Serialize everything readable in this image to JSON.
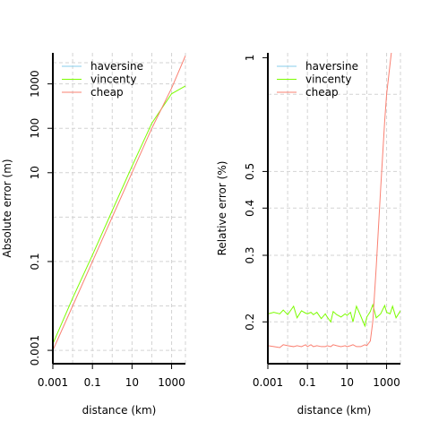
{
  "colors": {
    "haversine": "#87CEEB",
    "vincenty": "#7CFC00",
    "cheap": "#FA8072"
  },
  "chart_data": [
    {
      "type": "line",
      "xlabel": "distance (km)",
      "ylabel": "Absolute error (m)",
      "x_scale": "log",
      "y_scale": "log",
      "xlim": [
        0.001,
        5000
      ],
      "ylim": [
        0.0005,
        5000
      ],
      "x_ticks": [
        {
          "value": 0.001,
          "label": "0.001"
        },
        {
          "value": 0.1,
          "label": "0.1"
        },
        {
          "value": 10,
          "label": "10"
        },
        {
          "value": 1000,
          "label": "1000"
        }
      ],
      "y_ticks": [
        {
          "value": 0.001,
          "label": "0.001"
        },
        {
          "value": 0.1,
          "label": "0.1"
        },
        {
          "value": 10,
          "label": "10"
        },
        {
          "value": 100,
          "label": "100"
        },
        {
          "value": 1000,
          "label": "1000"
        }
      ],
      "x_grid": [
        0.001,
        0.01,
        0.1,
        1,
        10,
        100,
        1000,
        5000
      ],
      "y_grid": [
        0.001,
        0.01,
        0.1,
        1,
        10,
        100,
        1000,
        3000
      ],
      "grid": true,
      "legend": [
        "haversine",
        "vincenty",
        "cheap"
      ],
      "legend_position": "top-left",
      "series": [
        {
          "name": "vincenty",
          "color_key": "vincenty",
          "x": [
            0.001,
            0.01,
            0.1,
            1,
            10,
            100,
            1000,
            5000
          ],
          "y": [
            0.0014,
            0.015,
            0.14,
            1.4,
            14,
            130,
            600,
            900
          ]
        },
        {
          "name": "cheap",
          "color_key": "cheap",
          "x": [
            0.001,
            0.01,
            0.1,
            1,
            10,
            100,
            1000,
            5000
          ],
          "y": [
            0.001,
            0.01,
            0.1,
            1,
            10,
            100,
            800,
            4300
          ]
        }
      ]
    },
    {
      "type": "line",
      "xlabel": "distance (km)",
      "ylabel": "Relative error (%)",
      "x_scale": "log",
      "y_scale": "log",
      "xlim": [
        0.001,
        5000
      ],
      "ylim": [
        0.155,
        1.03
      ],
      "x_ticks": [
        {
          "value": 0.001,
          "label": "0.001"
        },
        {
          "value": 0.1,
          "label": "0.1"
        },
        {
          "value": 10,
          "label": "10"
        },
        {
          "value": 1000,
          "label": "1000"
        }
      ],
      "y_ticks": [
        {
          "value": 0.2,
          "label": "0.2"
        },
        {
          "value": 0.3,
          "label": "0.3"
        },
        {
          "value": 0.4,
          "label": "0.4"
        },
        {
          "value": 0.5,
          "label": "0.5"
        },
        {
          "value": 1,
          "label": "1"
        }
      ],
      "x_grid": [
        0.001,
        0.01,
        0.1,
        1,
        10,
        100,
        1000,
        5000
      ],
      "y_grid": [
        0.2,
        0.3,
        0.4,
        0.5,
        0.8
      ],
      "grid": true,
      "legend": [
        "haversine",
        "vincenty",
        "cheap"
      ],
      "legend_position": "top-right",
      "series": [
        {
          "name": "vincenty",
          "color_key": "vincenty",
          "x": [
            0.001,
            0.002,
            0.004,
            0.006,
            0.01,
            0.02,
            0.03,
            0.05,
            0.08,
            0.1,
            0.15,
            0.2,
            0.3,
            0.5,
            0.8,
            1,
            1.5,
            2,
            3,
            5,
            8,
            10,
            15,
            20,
            30,
            50,
            80,
            100,
            150,
            200,
            300,
            500,
            800,
            1000,
            1500,
            2000,
            3000,
            5000
          ],
          "y": [
            0.21,
            0.212,
            0.21,
            0.215,
            0.209,
            0.22,
            0.205,
            0.214,
            0.211,
            0.21,
            0.212,
            0.209,
            0.212,
            0.204,
            0.21,
            0.206,
            0.2,
            0.213,
            0.209,
            0.206,
            0.21,
            0.208,
            0.212,
            0.2,
            0.22,
            0.207,
            0.195,
            0.206,
            0.213,
            0.222,
            0.205,
            0.21,
            0.221,
            0.212,
            0.21,
            0.22,
            0.205,
            0.214
          ]
        },
        {
          "name": "cheap",
          "color_key": "cheap",
          "x": [
            0.001,
            0.002,
            0.004,
            0.006,
            0.01,
            0.02,
            0.03,
            0.05,
            0.08,
            0.1,
            0.15,
            0.2,
            0.3,
            0.5,
            0.8,
            1,
            1.5,
            2,
            3,
            5,
            8,
            10,
            15,
            20,
            30,
            50,
            80,
            100,
            150,
            200,
            300,
            500,
            800,
            1000,
            2000
          ],
          "y": [
            0.173,
            0.172,
            0.171,
            0.174,
            0.173,
            0.172,
            0.173,
            0.172,
            0.174,
            0.172,
            0.174,
            0.172,
            0.173,
            0.172,
            0.172,
            0.173,
            0.172,
            0.174,
            0.173,
            0.172,
            0.173,
            0.172,
            0.173,
            0.174,
            0.172,
            0.172,
            0.174,
            0.173,
            0.178,
            0.2,
            0.28,
            0.45,
            0.68,
            0.8,
            1.1
          ]
        }
      ]
    }
  ]
}
